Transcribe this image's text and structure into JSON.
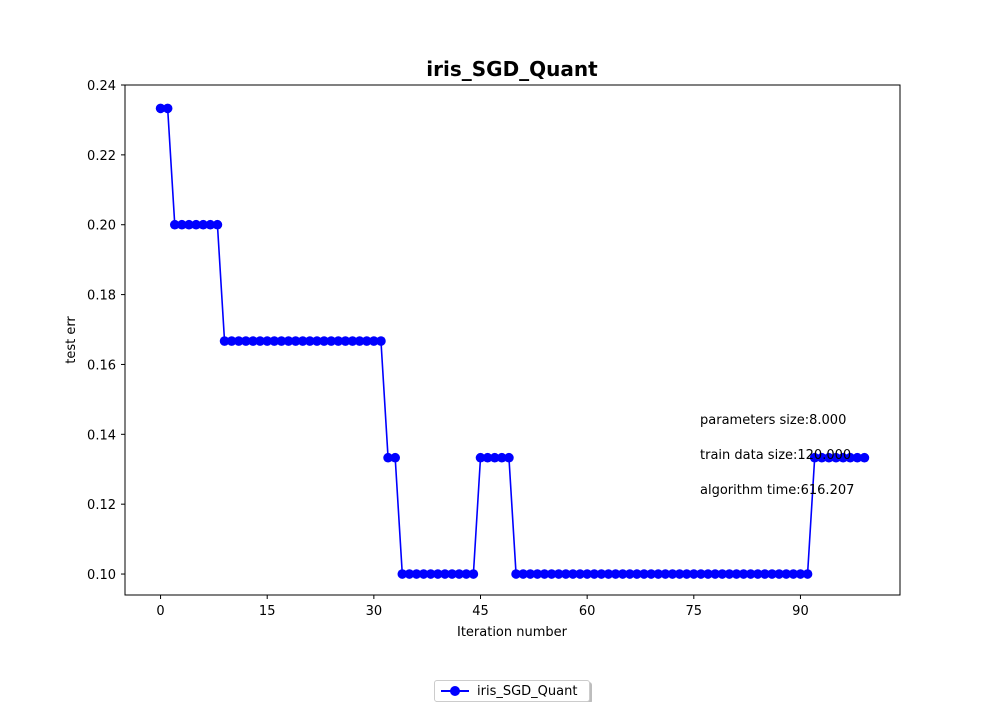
{
  "chart_data": {
    "type": "line",
    "title": "iris_SGD_Quant",
    "xlabel": "Iteration number",
    "ylabel": "test err",
    "xlim": [
      -5,
      104
    ],
    "ylim": [
      0.094,
      0.24
    ],
    "xticks": [
      0,
      15,
      30,
      45,
      60,
      75,
      90
    ],
    "yticks": [
      0.1,
      0.12,
      0.14,
      0.16,
      0.18,
      0.2,
      0.22,
      0.24
    ],
    "ytick_labels": [
      "0.10",
      "0.12",
      "0.14",
      "0.16",
      "0.18",
      "0.20",
      "0.22",
      "0.24"
    ],
    "grid": false,
    "color": "#0000ff",
    "legend_position": "bottom-center",
    "series": [
      {
        "name": "iris_SGD_Quant",
        "marker": "circle",
        "x": [
          0,
          1,
          2,
          3,
          4,
          5,
          6,
          7,
          8,
          9,
          10,
          11,
          12,
          13,
          14,
          15,
          16,
          17,
          18,
          19,
          20,
          21,
          22,
          23,
          24,
          25,
          26,
          27,
          28,
          29,
          30,
          31,
          32,
          33,
          34,
          35,
          36,
          37,
          38,
          39,
          40,
          41,
          42,
          43,
          44,
          45,
          46,
          47,
          48,
          49,
          50,
          51,
          52,
          53,
          54,
          55,
          56,
          57,
          58,
          59,
          60,
          61,
          62,
          63,
          64,
          65,
          66,
          67,
          68,
          69,
          70,
          71,
          72,
          73,
          74,
          75,
          76,
          77,
          78,
          79,
          80,
          81,
          82,
          83,
          84,
          85,
          86,
          87,
          88,
          89,
          90,
          91,
          92,
          93,
          94,
          95,
          96,
          97,
          98,
          99
        ],
        "values": [
          0.2333,
          0.2333,
          0.2,
          0.2,
          0.2,
          0.2,
          0.2,
          0.2,
          0.2,
          0.1667,
          0.1667,
          0.1667,
          0.1667,
          0.1667,
          0.1667,
          0.1667,
          0.1667,
          0.1667,
          0.1667,
          0.1667,
          0.1667,
          0.1667,
          0.1667,
          0.1667,
          0.1667,
          0.1667,
          0.1667,
          0.1667,
          0.1667,
          0.1667,
          0.1667,
          0.1667,
          0.1333,
          0.1333,
          0.1,
          0.1,
          0.1,
          0.1,
          0.1,
          0.1,
          0.1,
          0.1,
          0.1,
          0.1,
          0.1,
          0.1333,
          0.1333,
          0.1333,
          0.1333,
          0.1333,
          0.1,
          0.1,
          0.1,
          0.1,
          0.1,
          0.1,
          0.1,
          0.1,
          0.1,
          0.1,
          0.1,
          0.1,
          0.1,
          0.1,
          0.1,
          0.1,
          0.1,
          0.1,
          0.1,
          0.1,
          0.1,
          0.1,
          0.1,
          0.1,
          0.1,
          0.1,
          0.1,
          0.1,
          0.1,
          0.1,
          0.1,
          0.1,
          0.1,
          0.1,
          0.1,
          0.1,
          0.1,
          0.1,
          0.1,
          0.1,
          0.1,
          0.1,
          0.1333,
          0.1333,
          0.1333,
          0.1333,
          0.1333,
          0.1333,
          0.1333,
          0.1333
        ]
      }
    ],
    "annotations": [
      "parameters size:8.000",
      "train data size:120.000",
      "algorithm time:616.207"
    ]
  }
}
